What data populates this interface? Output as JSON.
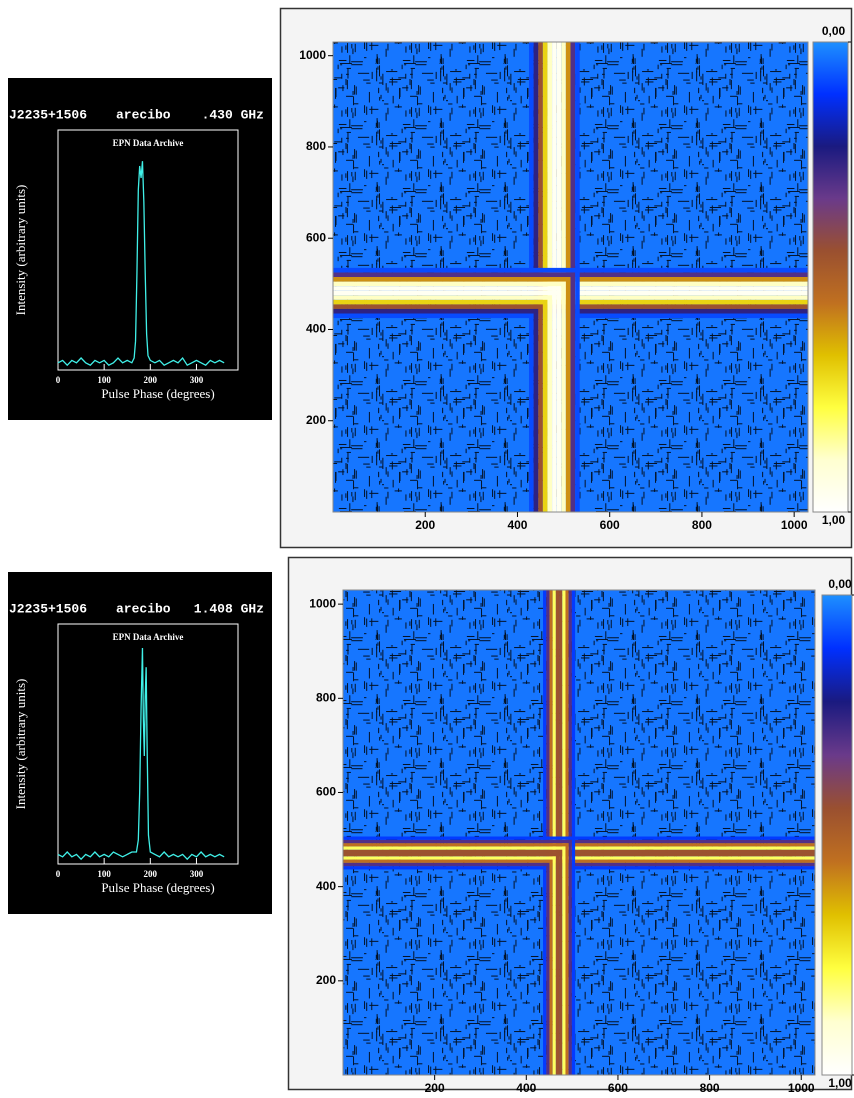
{
  "chart_data": [
    {
      "type": "line",
      "pulsar": "J2235+1506",
      "telescope": "arecibo",
      "frequency": ".430 GHz",
      "subtitle": "EPN Data Archive",
      "y_label": "Intensity (arbitrary units)",
      "x_label": "Pulse Phase (degrees)",
      "xlim": [
        0,
        390
      ],
      "ylim": [
        0,
        1
      ],
      "xticks": [
        0,
        100,
        200,
        300
      ],
      "color": "#40f0e8",
      "x": [
        0,
        10,
        20,
        30,
        40,
        50,
        60,
        70,
        80,
        90,
        100,
        110,
        120,
        130,
        140,
        150,
        160,
        165,
        168,
        171,
        174,
        177,
        180,
        183,
        186,
        189,
        192,
        195,
        200,
        210,
        220,
        230,
        240,
        250,
        260,
        270,
        280,
        290,
        300,
        310,
        320,
        330,
        340,
        350,
        360
      ],
      "values": [
        0.03,
        0.04,
        0.02,
        0.04,
        0.03,
        0.05,
        0.03,
        0.02,
        0.04,
        0.03,
        0.04,
        0.02,
        0.03,
        0.05,
        0.03,
        0.04,
        0.03,
        0.05,
        0.12,
        0.4,
        0.75,
        0.85,
        0.8,
        0.87,
        0.7,
        0.4,
        0.15,
        0.06,
        0.04,
        0.03,
        0.04,
        0.02,
        0.03,
        0.04,
        0.03,
        0.05,
        0.02,
        0.03,
        0.04,
        0.03,
        0.02,
        0.04,
        0.03,
        0.04,
        0.03
      ]
    },
    {
      "type": "heatmap",
      "xlim": [
        0,
        1030
      ],
      "ylim": [
        0,
        1030
      ],
      "xticks": [
        200,
        400,
        600,
        800,
        1000
      ],
      "yticks": [
        200,
        400,
        600,
        800,
        1000
      ],
      "colormap": [
        "#1e90ff",
        "#0030ff",
        "#1a1a80",
        "#6a3a8a",
        "#9a5030",
        "#c07020",
        "#e0c000",
        "#ffff40",
        "#ffffd0",
        "#ffffff"
      ],
      "colorbar_ticks": [
        {
          "value": 0,
          "label": "0,00"
        },
        {
          "value": 1,
          "label": "1,00"
        }
      ],
      "background_value": 0.03,
      "x": [
        430,
        440,
        450,
        460,
        470,
        480,
        490,
        500,
        510,
        520,
        530
      ],
      "values": [
        0.08,
        0.25,
        0.45,
        0.7,
        0.88,
        0.97,
        0.97,
        0.88,
        0.6,
        0.3,
        0.08
      ]
    },
    {
      "type": "line",
      "pulsar": "J2235+1506",
      "telescope": "arecibo",
      "frequency": "1.408 GHz",
      "subtitle": "EPN Data Archive",
      "y_label": "Intensity (arbitrary units)",
      "x_label": "Pulse Phase (degrees)",
      "xlim": [
        0,
        390
      ],
      "ylim": [
        0,
        1
      ],
      "xticks": [
        0,
        100,
        200,
        300
      ],
      "color": "#40f0e8",
      "x": [
        0,
        10,
        20,
        30,
        40,
        50,
        60,
        70,
        80,
        90,
        100,
        110,
        120,
        130,
        140,
        150,
        160,
        170,
        174,
        177,
        180,
        183,
        185,
        187,
        189,
        191,
        193,
        196,
        200,
        210,
        220,
        230,
        240,
        250,
        260,
        270,
        280,
        290,
        300,
        310,
        320,
        330,
        340,
        350,
        360
      ],
      "values": [
        0.04,
        0.03,
        0.05,
        0.03,
        0.04,
        0.02,
        0.04,
        0.03,
        0.05,
        0.03,
        0.04,
        0.03,
        0.05,
        0.04,
        0.03,
        0.04,
        0.05,
        0.05,
        0.1,
        0.3,
        0.65,
        0.9,
        0.6,
        0.45,
        0.7,
        0.82,
        0.5,
        0.12,
        0.05,
        0.04,
        0.03,
        0.05,
        0.03,
        0.04,
        0.03,
        0.04,
        0.02,
        0.04,
        0.03,
        0.05,
        0.03,
        0.04,
        0.03,
        0.04,
        0.03
      ]
    },
    {
      "type": "heatmap",
      "xlim": [
        0,
        1030
      ],
      "ylim": [
        0,
        1030
      ],
      "xticks": [
        200,
        400,
        600,
        800,
        1000
      ],
      "yticks": [
        200,
        400,
        600,
        800,
        1000
      ],
      "colormap": [
        "#1e90ff",
        "#0030ff",
        "#1a1a80",
        "#6a3a8a",
        "#9a5030",
        "#c07020",
        "#e0c000",
        "#ffff40",
        "#ffffd0",
        "#ffffff"
      ],
      "colorbar_ticks": [
        {
          "value": 0,
          "label": "0,00"
        },
        {
          "value": 1,
          "label": "1,00"
        }
      ],
      "background_value": 0.03,
      "x": [
        440,
        447,
        454,
        461,
        468,
        475,
        482,
        489,
        496,
        503
      ],
      "values": [
        0.1,
        0.3,
        0.55,
        0.8,
        0.45,
        0.45,
        0.8,
        0.55,
        0.3,
        0.1
      ]
    }
  ]
}
